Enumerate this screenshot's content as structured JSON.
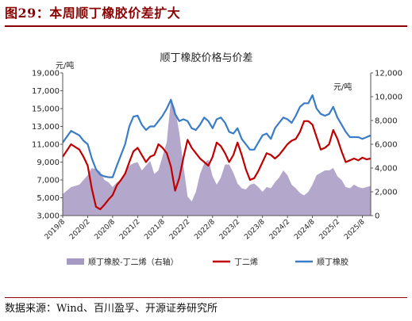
{
  "figure": {
    "title": "图29：本周顺丁橡胶价差扩大",
    "source": "数据来源：Wind、百川盈孚、开源证券研究所"
  },
  "chart_data": {
    "type": "line",
    "title": "顺丁橡胶价格与价差",
    "left_axis_unit": "元/吨",
    "right_axis_unit": "元/吨",
    "ylim_left": [
      3000,
      19000
    ],
    "yticks_left": [
      "3,000",
      "5,000",
      "7,000",
      "9,000",
      "11,000",
      "13,000",
      "15,000",
      "17,000",
      "19,000"
    ],
    "ylim_right": [
      0,
      12000
    ],
    "yticks_right": [
      "0",
      "2,000",
      "4,000",
      "6,000",
      "8,000",
      "10,000",
      "12,000"
    ],
    "xlim": [
      "2019-08",
      "2025-10"
    ],
    "xticks": [
      "2019/8",
      "2020/2",
      "2020/8",
      "2021/2",
      "2021/8",
      "2022/2",
      "2022/8",
      "2023/2",
      "2023/8",
      "2024/2",
      "2024/8",
      "2025/2",
      "2025/8"
    ],
    "legend_position": "bottom",
    "grid": false,
    "series": [
      {
        "name": "顺丁橡胶-丁二烯（右轴）",
        "type": "area",
        "axis": "right",
        "color": "#A699C2",
        "points": [
          [
            "2019-08",
            1800
          ],
          [
            "2019-10",
            2400
          ],
          [
            "2019-12",
            2600
          ],
          [
            "2020-01",
            3000
          ],
          [
            "2020-02",
            3400
          ],
          [
            "2020-03",
            4000
          ],
          [
            "2020-04",
            3900
          ],
          [
            "2020-05",
            3700
          ],
          [
            "2020-06",
            3000
          ],
          [
            "2020-07",
            2800
          ],
          [
            "2020-08",
            2400
          ],
          [
            "2020-09",
            2800
          ],
          [
            "2020-10",
            3000
          ],
          [
            "2020-11",
            3600
          ],
          [
            "2020-12",
            4200
          ],
          [
            "2021-01",
            4400
          ],
          [
            "2021-02",
            4500
          ],
          [
            "2021-03",
            3800
          ],
          [
            "2021-04",
            4200
          ],
          [
            "2021-05",
            4600
          ],
          [
            "2021-06",
            3500
          ],
          [
            "2021-07",
            3800
          ],
          [
            "2021-08",
            5000
          ],
          [
            "2021-09",
            6200
          ],
          [
            "2021-10",
            9800
          ],
          [
            "2021-11",
            9000
          ],
          [
            "2021-12",
            7000
          ],
          [
            "2022-01",
            4200
          ],
          [
            "2022-02",
            1600
          ],
          [
            "2022-03",
            1200
          ],
          [
            "2022-04",
            2000
          ],
          [
            "2022-05",
            3500
          ],
          [
            "2022-06",
            4400
          ],
          [
            "2022-07",
            4700
          ],
          [
            "2022-08",
            3300
          ],
          [
            "2022-09",
            2600
          ],
          [
            "2022-10",
            3200
          ],
          [
            "2022-11",
            4300
          ],
          [
            "2022-12",
            4300
          ],
          [
            "2023-01",
            3600
          ],
          [
            "2023-02",
            2700
          ],
          [
            "2023-03",
            2300
          ],
          [
            "2023-04",
            2200
          ],
          [
            "2023-05",
            2600
          ],
          [
            "2023-06",
            2700
          ],
          [
            "2023-07",
            2400
          ],
          [
            "2023-08",
            2000
          ],
          [
            "2023-09",
            2400
          ],
          [
            "2023-10",
            2300
          ],
          [
            "2023-11",
            2800
          ],
          [
            "2023-12",
            3200
          ],
          [
            "2024-01",
            3800
          ],
          [
            "2024-02",
            3400
          ],
          [
            "2024-03",
            2600
          ],
          [
            "2024-04",
            2300
          ],
          [
            "2024-05",
            1900
          ],
          [
            "2024-06",
            1700
          ],
          [
            "2024-07",
            2000
          ],
          [
            "2024-08",
            2600
          ],
          [
            "2024-09",
            3400
          ],
          [
            "2024-10",
            3600
          ],
          [
            "2024-11",
            3800
          ],
          [
            "2024-12",
            3800
          ],
          [
            "2025-01",
            4000
          ],
          [
            "2025-02",
            3300
          ],
          [
            "2025-03",
            3000
          ],
          [
            "2025-04",
            2400
          ],
          [
            "2025-05",
            2300
          ],
          [
            "2025-06",
            2600
          ],
          [
            "2025-07",
            2400
          ],
          [
            "2025-08",
            2300
          ],
          [
            "2025-09",
            2400
          ],
          [
            "2025-10",
            2500
          ]
        ]
      },
      {
        "name": "丁二烯",
        "type": "line",
        "axis": "left",
        "color": "#C00000",
        "points": [
          [
            "2019-08",
            9600
          ],
          [
            "2019-10",
            11000
          ],
          [
            "2019-12",
            10400
          ],
          [
            "2020-01",
            9600
          ],
          [
            "2020-02",
            8600
          ],
          [
            "2020-03",
            6000
          ],
          [
            "2020-04",
            4000
          ],
          [
            "2020-05",
            3700
          ],
          [
            "2020-06",
            4200
          ],
          [
            "2020-07",
            4800
          ],
          [
            "2020-08",
            5300
          ],
          [
            "2020-09",
            6400
          ],
          [
            "2020-10",
            7000
          ],
          [
            "2020-11",
            7700
          ],
          [
            "2020-12",
            9000
          ],
          [
            "2021-01",
            10200
          ],
          [
            "2021-02",
            10600
          ],
          [
            "2021-03",
            9800
          ],
          [
            "2021-04",
            9000
          ],
          [
            "2021-05",
            9600
          ],
          [
            "2021-06",
            9800
          ],
          [
            "2021-07",
            11000
          ],
          [
            "2021-08",
            10600
          ],
          [
            "2021-09",
            10000
          ],
          [
            "2021-10",
            8500
          ],
          [
            "2021-11",
            5800
          ],
          [
            "2021-12",
            7200
          ],
          [
            "2022-01",
            9500
          ],
          [
            "2022-02",
            11500
          ],
          [
            "2022-03",
            10600
          ],
          [
            "2022-04",
            10000
          ],
          [
            "2022-05",
            9400
          ],
          [
            "2022-06",
            9000
          ],
          [
            "2022-07",
            8600
          ],
          [
            "2022-08",
            9600
          ],
          [
            "2022-09",
            11200
          ],
          [
            "2022-10",
            10800
          ],
          [
            "2022-11",
            10000
          ],
          [
            "2022-12",
            9000
          ],
          [
            "2023-01",
            9800
          ],
          [
            "2023-02",
            11200
          ],
          [
            "2023-03",
            9800
          ],
          [
            "2023-04",
            8200
          ],
          [
            "2023-05",
            7000
          ],
          [
            "2023-06",
            7200
          ],
          [
            "2023-07",
            8000
          ],
          [
            "2023-08",
            9000
          ],
          [
            "2023-09",
            10000
          ],
          [
            "2023-10",
            9800
          ],
          [
            "2023-11",
            9400
          ],
          [
            "2023-12",
            9800
          ],
          [
            "2024-01",
            10400
          ],
          [
            "2024-02",
            11000
          ],
          [
            "2024-03",
            11400
          ],
          [
            "2024-04",
            11600
          ],
          [
            "2024-05",
            12400
          ],
          [
            "2024-06",
            13600
          ],
          [
            "2024-07",
            13600
          ],
          [
            "2024-08",
            13200
          ],
          [
            "2024-09",
            11800
          ],
          [
            "2024-10",
            10400
          ],
          [
            "2024-11",
            10600
          ],
          [
            "2024-12",
            11000
          ],
          [
            "2025-01",
            12600
          ],
          [
            "2025-02",
            11600
          ],
          [
            "2025-03",
            10200
          ],
          [
            "2025-04",
            9000
          ],
          [
            "2025-05",
            9200
          ],
          [
            "2025-06",
            9400
          ],
          [
            "2025-07",
            9200
          ],
          [
            "2025-08",
            9500
          ],
          [
            "2025-09",
            9300
          ],
          [
            "2025-10",
            9400
          ]
        ]
      },
      {
        "name": "顺丁橡胶",
        "type": "line",
        "axis": "left",
        "color": "#3A7CC6",
        "points": [
          [
            "2019-08",
            11200
          ],
          [
            "2019-10",
            12500
          ],
          [
            "2019-12",
            12000
          ],
          [
            "2020-01",
            11400
          ],
          [
            "2020-02",
            11000
          ],
          [
            "2020-03",
            9400
          ],
          [
            "2020-04",
            8200
          ],
          [
            "2020-05",
            7600
          ],
          [
            "2020-06",
            7400
          ],
          [
            "2020-07",
            7300
          ],
          [
            "2020-08",
            7300
          ],
          [
            "2020-09",
            8600
          ],
          [
            "2020-10",
            9800
          ],
          [
            "2020-11",
            11000
          ],
          [
            "2020-12",
            13000
          ],
          [
            "2021-01",
            14100
          ],
          [
            "2021-02",
            14200
          ],
          [
            "2021-03",
            13200
          ],
          [
            "2021-04",
            12600
          ],
          [
            "2021-05",
            13000
          ],
          [
            "2021-06",
            13000
          ],
          [
            "2021-07",
            13600
          ],
          [
            "2021-08",
            14200
          ],
          [
            "2021-09",
            15000
          ],
          [
            "2021-10",
            16000
          ],
          [
            "2021-11",
            14400
          ],
          [
            "2021-12",
            13600
          ],
          [
            "2022-01",
            13800
          ],
          [
            "2022-02",
            13600
          ],
          [
            "2022-03",
            12800
          ],
          [
            "2022-04",
            12600
          ],
          [
            "2022-05",
            13200
          ],
          [
            "2022-06",
            14000
          ],
          [
            "2022-07",
            13600
          ],
          [
            "2022-08",
            12800
          ],
          [
            "2022-09",
            13800
          ],
          [
            "2022-10",
            14000
          ],
          [
            "2022-11",
            13400
          ],
          [
            "2022-12",
            12400
          ],
          [
            "2023-01",
            12200
          ],
          [
            "2023-02",
            12800
          ],
          [
            "2023-03",
            11600
          ],
          [
            "2023-04",
            11000
          ],
          [
            "2023-05",
            10400
          ],
          [
            "2023-06",
            10400
          ],
          [
            "2023-07",
            11200
          ],
          [
            "2023-08",
            12000
          ],
          [
            "2023-09",
            12200
          ],
          [
            "2023-10",
            11600
          ],
          [
            "2023-11",
            12800
          ],
          [
            "2023-12",
            13400
          ],
          [
            "2024-01",
            14000
          ],
          [
            "2024-02",
            13800
          ],
          [
            "2024-03",
            13400
          ],
          [
            "2024-04",
            14200
          ],
          [
            "2024-05",
            15200
          ],
          [
            "2024-06",
            15600
          ],
          [
            "2024-07",
            15600
          ],
          [
            "2024-08",
            16500
          ],
          [
            "2024-09",
            15000
          ],
          [
            "2024-10",
            14400
          ],
          [
            "2024-11",
            14200
          ],
          [
            "2024-12",
            14400
          ],
          [
            "2025-01",
            15200
          ],
          [
            "2025-02",
            14000
          ],
          [
            "2025-03",
            13200
          ],
          [
            "2025-04",
            12400
          ],
          [
            "2025-05",
            11800
          ],
          [
            "2025-06",
            11800
          ],
          [
            "2025-07",
            11800
          ],
          [
            "2025-08",
            11600
          ],
          [
            "2025-09",
            11800
          ],
          [
            "2025-10",
            12000
          ]
        ]
      }
    ]
  }
}
